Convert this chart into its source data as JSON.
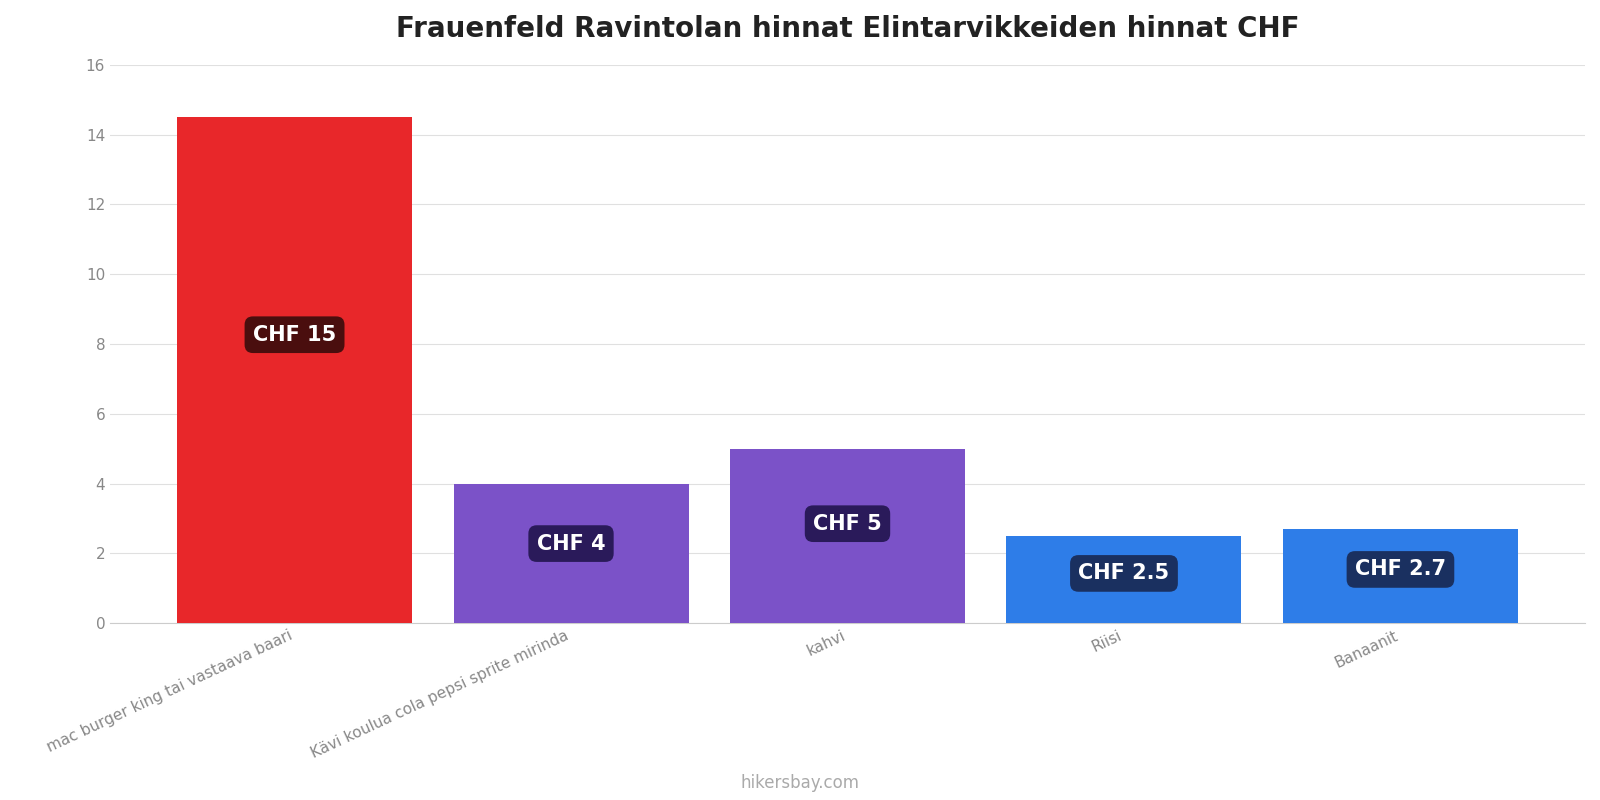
{
  "title": "Frauenfeld Ravintolan hinnat Elintarvikkeiden hinnat CHF",
  "categories": [
    "mac burger king tai vastaava baari",
    "Kävi koulua cola pepsi sprite mirinda",
    "kahvi",
    "Riisi",
    "Banaanit"
  ],
  "values": [
    14.5,
    4.0,
    5.0,
    2.5,
    2.7
  ],
  "labels": [
    "CHF 15",
    "CHF 4",
    "CHF 5",
    "CHF 2.5",
    "CHF 2.7"
  ],
  "bar_colors": [
    "#e8272a",
    "#7b52c8",
    "#7b52c8",
    "#2e7de8",
    "#2e7de8"
  ],
  "label_bg_colors": [
    "#4a0e0e",
    "#2a1a5a",
    "#2a1a5a",
    "#1a3060",
    "#1a3060"
  ],
  "ylim": [
    0,
    16
  ],
  "yticks": [
    0,
    2,
    4,
    6,
    8,
    10,
    12,
    14,
    16
  ],
  "background_color": "#ffffff",
  "grid_color": "#e0e0e0",
  "title_fontsize": 20,
  "tick_fontsize": 11,
  "label_fontsize": 15,
  "watermark": "hikersbay.com",
  "bar_width": 0.85
}
